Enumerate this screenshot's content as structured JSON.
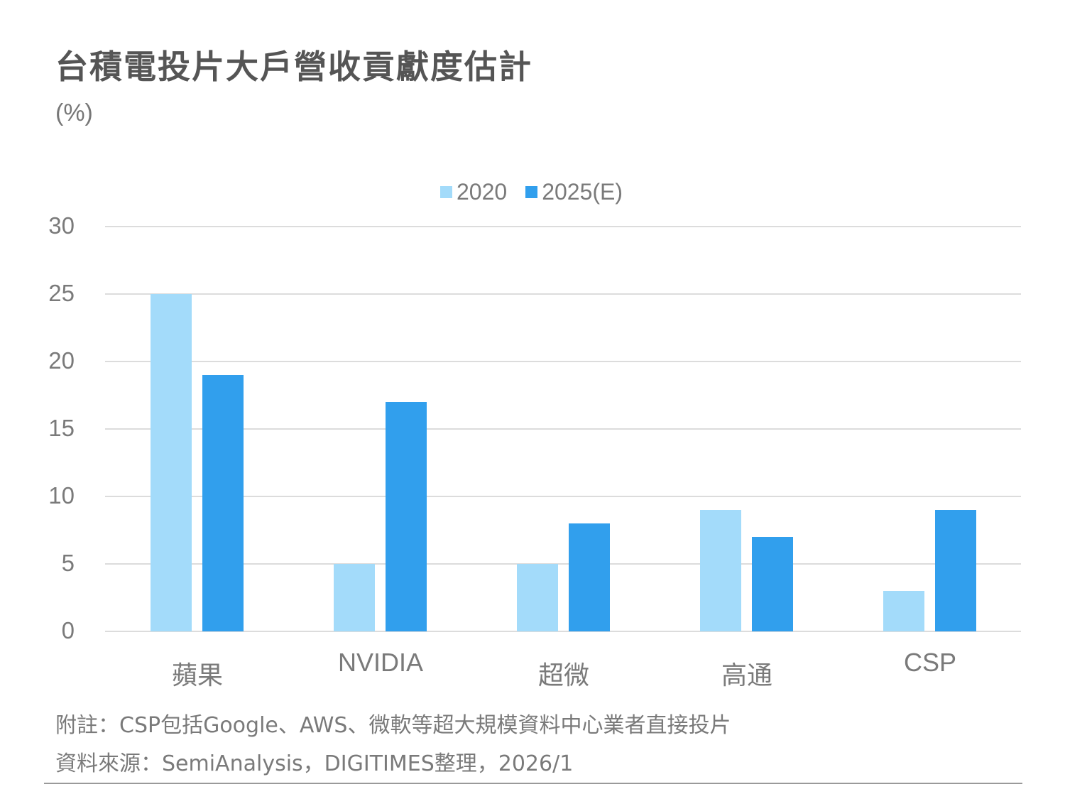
{
  "title": "台積電投片大戶營收貢獻度估計",
  "unit": "(%)",
  "legend": [
    {
      "label": "2020",
      "color": "#a3dbfa"
    },
    {
      "label": "2025(E)",
      "color": "#319fed"
    }
  ],
  "notes": {
    "note": "附註：CSP包括Google、AWS、微軟等超大規模資料中心業者直接投片",
    "source": "資料來源：SemiAnalysis，DIGITIMES整理，2026/1"
  },
  "chart_data": {
    "type": "bar",
    "title": "台積電投片大戶營收貢獻度估計",
    "ylabel": "(%)",
    "xlabel": "",
    "categories": [
      "蘋果",
      "NVIDIA",
      "超微",
      "高通",
      "CSP"
    ],
    "series": [
      {
        "name": "2020",
        "color": "#a3dbfa",
        "values": [
          25,
          5,
          5,
          9,
          3
        ]
      },
      {
        "name": "2025(E)",
        "color": "#319fed",
        "values": [
          19,
          17,
          8,
          7,
          9
        ]
      }
    ],
    "ylim": [
      0,
      30
    ],
    "yticks": [
      0,
      5,
      10,
      15,
      20,
      25,
      30
    ],
    "grid": true,
    "legend_position": "top-center"
  }
}
